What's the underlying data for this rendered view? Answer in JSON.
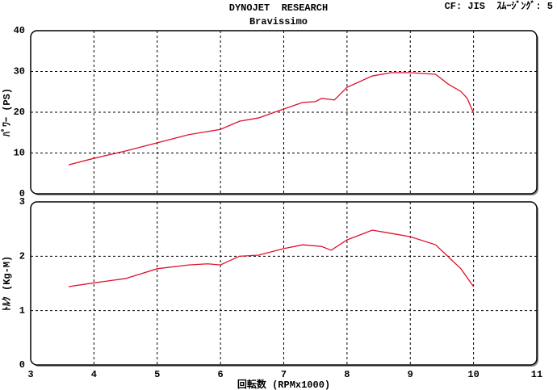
{
  "header": {
    "title": "DYNOJET  RESEARCH",
    "subtitle": "Bravissimo",
    "settings": "CF: JIS  ｽﾑｰｼﾞﾝｸﾞ: 5"
  },
  "chart_data": [
    {
      "type": "line",
      "ylabel": "ﾊﾟﾜｰ (PS)",
      "x": [
        3.6,
        4.0,
        4.5,
        5.0,
        5.5,
        6.0,
        6.3,
        6.6,
        7.0,
        7.3,
        7.5,
        7.6,
        7.8,
        8.0,
        8.4,
        8.7,
        9.0,
        9.4,
        9.6,
        9.8,
        9.9,
        10.0
      ],
      "series": [
        {
          "color": "#e0102a",
          "values": [
            7.1,
            8.7,
            10.5,
            12.5,
            14.5,
            15.8,
            17.8,
            18.6,
            20.8,
            22.4,
            22.6,
            23.4,
            23.0,
            26.1,
            28.9,
            29.7,
            29.7,
            29.3,
            26.9,
            25.1,
            23.4,
            19.8
          ]
        }
      ],
      "xlim": [
        3,
        11
      ],
      "ylim": [
        0,
        40
      ],
      "yticks": [
        0,
        10,
        20,
        30,
        40
      ],
      "grid": true
    },
    {
      "type": "line",
      "ylabel": "ﾄﾙｸ (Kg-M)",
      "xlabel": "回転数 (RPMx1000)",
      "x": [
        3.6,
        4.0,
        4.5,
        5.0,
        5.5,
        5.8,
        6.0,
        6.3,
        6.6,
        7.0,
        7.3,
        7.6,
        7.75,
        8.0,
        8.4,
        8.7,
        9.0,
        9.4,
        9.6,
        9.8,
        10.0
      ],
      "series": [
        {
          "color": "#e0102a",
          "values": [
            1.44,
            1.51,
            1.59,
            1.77,
            1.84,
            1.86,
            1.84,
            2.0,
            2.02,
            2.14,
            2.21,
            2.18,
            2.11,
            2.3,
            2.48,
            2.42,
            2.36,
            2.21,
            1.99,
            1.77,
            1.44
          ]
        }
      ],
      "xlim": [
        3,
        11
      ],
      "xticks": [
        3,
        4,
        5,
        6,
        7,
        8,
        9,
        10,
        11
      ],
      "ylim": [
        0,
        3
      ],
      "yticks": [
        0,
        1,
        2,
        3
      ],
      "grid": true
    }
  ]
}
